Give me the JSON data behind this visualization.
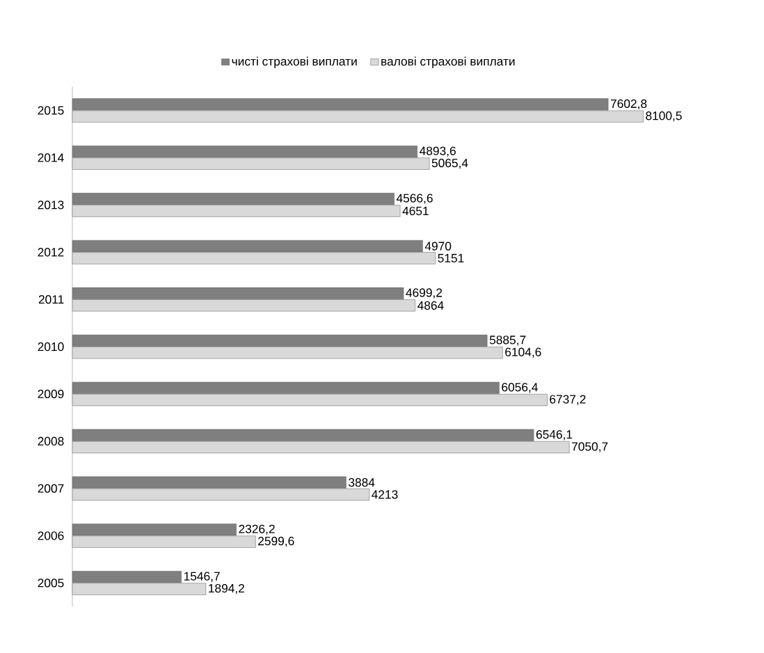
{
  "chart_data": {
    "type": "bar",
    "orientation": "horizontal",
    "categories": [
      "2015",
      "2014",
      "2013",
      "2012",
      "2011",
      "2010",
      "2009",
      "2008",
      "2007",
      "2006",
      "2005"
    ],
    "series": [
      {
        "name": "чисті страхові виплати",
        "color": "#7f7f7f",
        "values": [
          7602.8,
          4893.6,
          4566.6,
          4970,
          4699.2,
          5885.7,
          6056.4,
          6546.1,
          3884,
          2326.2,
          1546.7
        ],
        "value_labels": [
          "7602,8",
          "4893,6",
          "4566,6",
          "4970",
          "4699,2",
          "5885,7",
          "6056,4",
          "6546,1",
          "3884",
          "2326,2",
          "1546,7"
        ]
      },
      {
        "name": "валові страхові виплати",
        "color": "#d9d9d9",
        "values": [
          8100.5,
          5065.4,
          4651,
          5151,
          4864,
          6104.6,
          6737.2,
          7050.7,
          4213,
          2599.6,
          1894.2
        ],
        "value_labels": [
          "8100,5",
          "5065,4",
          "4651",
          "5151",
          "4864",
          "6104,6",
          "6737,2",
          "7050,7",
          "4213",
          "2599,6",
          "1894,2"
        ]
      }
    ],
    "legend": "top"
  }
}
